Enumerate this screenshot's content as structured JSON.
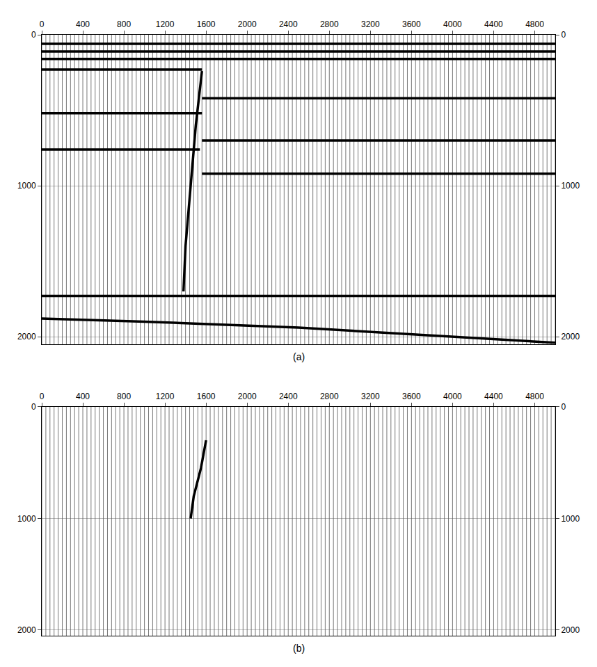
{
  "chart_data": [
    {
      "type": "wiggle",
      "title": "(a)",
      "trace_x": [
        0,
        40,
        80,
        120,
        160,
        200,
        240,
        280,
        320,
        360,
        400,
        440,
        480,
        520,
        560,
        600,
        640,
        680,
        720,
        760,
        800,
        840,
        880,
        920,
        960,
        1000,
        1040,
        1080,
        1120,
        1160,
        1200,
        1240,
        1280,
        1320,
        1360,
        1400,
        1440,
        1480,
        1520,
        1560,
        1600,
        1640,
        1680,
        1720,
        1760,
        1800,
        1840,
        1880,
        1920,
        1960,
        2000,
        2040,
        2080,
        2120,
        2160,
        2200,
        2240,
        2280,
        2320,
        2360,
        2400,
        2440,
        2480,
        2520,
        2560,
        2600,
        2640,
        2680,
        2720,
        2760,
        2800,
        2840,
        2880,
        2920,
        2960,
        3000,
        3040,
        3080,
        3120,
        3160,
        3200,
        3240,
        3280,
        3320,
        3360,
        3400,
        3440,
        3480,
        3520,
        3560,
        3600,
        3640,
        3680,
        3720,
        3760,
        3800,
        3840,
        3880,
        3920,
        3960,
        4000,
        4040,
        4080,
        4120,
        4160,
        4200,
        4240,
        4280,
        4320,
        4360,
        4400,
        4440,
        4480,
        4520,
        4560,
        4600,
        4640,
        4680,
        4720,
        4760,
        4800,
        4840,
        4880,
        4920,
        4960,
        5000
      ],
      "events": [
        {
          "x": [
            0,
            5000
          ],
          "y": [
            60,
            60
          ]
        },
        {
          "x": [
            0,
            5000
          ],
          "y": [
            110,
            110
          ]
        },
        {
          "x": [
            0,
            5000
          ],
          "y": [
            160,
            160
          ]
        },
        {
          "x": [
            0,
            1560
          ],
          "y": [
            230,
            230
          ]
        },
        {
          "x": [
            0,
            1560
          ],
          "y": [
            520,
            520
          ]
        },
        {
          "x": [
            0,
            1540
          ],
          "y": [
            760,
            760
          ]
        },
        {
          "x": [
            1560,
            5000
          ],
          "y": [
            420,
            420
          ]
        },
        {
          "x": [
            1560,
            5000
          ],
          "y": [
            700,
            700
          ]
        },
        {
          "x": [
            1560,
            5000
          ],
          "y": [
            920,
            920
          ]
        },
        {
          "x": [
            1560,
            1500,
            1450,
            1400,
            1380
          ],
          "y": [
            240,
            600,
            1000,
            1400,
            1700
          ]
        },
        {
          "x": [
            0,
            5000
          ],
          "y": [
            1730,
            1730
          ]
        },
        {
          "x": [
            0,
            1000,
            2500,
            3800,
            5000
          ],
          "y": [
            1880,
            1900,
            1940,
            1990,
            2040
          ]
        }
      ],
      "color": "#000000",
      "xlim": [
        0,
        5000
      ],
      "xticks": [
        0,
        400,
        800,
        1200,
        1600,
        2000,
        2400,
        2800,
        3200,
        3600,
        4000,
        4400,
        4800
      ],
      "ylim": [
        2050,
        0
      ],
      "yticks": [
        0,
        1000,
        2000
      ],
      "y2lim": [
        2050,
        0
      ],
      "y2ticks": [
        0,
        1000,
        2000
      ]
    },
    {
      "type": "wiggle",
      "title": "(b)",
      "trace_x": [
        0,
        40,
        80,
        120,
        160,
        200,
        240,
        280,
        320,
        360,
        400,
        440,
        480,
        520,
        560,
        600,
        640,
        680,
        720,
        760,
        800,
        840,
        880,
        920,
        960,
        1000,
        1040,
        1080,
        1120,
        1160,
        1200,
        1240,
        1280,
        1320,
        1360,
        1400,
        1440,
        1480,
        1520,
        1560,
        1600,
        1640,
        1680,
        1720,
        1760,
        1800,
        1840,
        1880,
        1920,
        1960,
        2000,
        2040,
        2080,
        2120,
        2160,
        2200,
        2240,
        2280,
        2320,
        2360,
        2400,
        2440,
        2480,
        2520,
        2560,
        2600,
        2640,
        2680,
        2720,
        2760,
        2800,
        2840,
        2880,
        2920,
        2960,
        3000,
        3040,
        3080,
        3120,
        3160,
        3200,
        3240,
        3280,
        3320,
        3360,
        3400,
        3440,
        3480,
        3520,
        3560,
        3600,
        3640,
        3680,
        3720,
        3760,
        3800,
        3840,
        3880,
        3920,
        3960,
        4000,
        4040,
        4080,
        4120,
        4160,
        4200,
        4240,
        4280,
        4320,
        4360,
        4400,
        4440,
        4480,
        4520,
        4560,
        4600,
        4640,
        4680,
        4720,
        4760,
        4800,
        4840,
        4880,
        4920,
        4960,
        5000
      ],
      "events": [
        {
          "x": [
            1600,
            1550,
            1480,
            1450
          ],
          "y": [
            300,
            550,
            800,
            1000
          ]
        }
      ],
      "color": "#000000",
      "xlim": [
        0,
        5000
      ],
      "xticks": [
        0,
        400,
        800,
        1200,
        1600,
        2000,
        2400,
        2800,
        3200,
        3600,
        4000,
        4400,
        4800
      ],
      "ylim": [
        2050,
        0
      ],
      "yticks": [
        0,
        1000,
        2000
      ],
      "y2lim": [
        2050,
        0
      ],
      "y2ticks": [
        0,
        1000,
        2000
      ]
    }
  ]
}
